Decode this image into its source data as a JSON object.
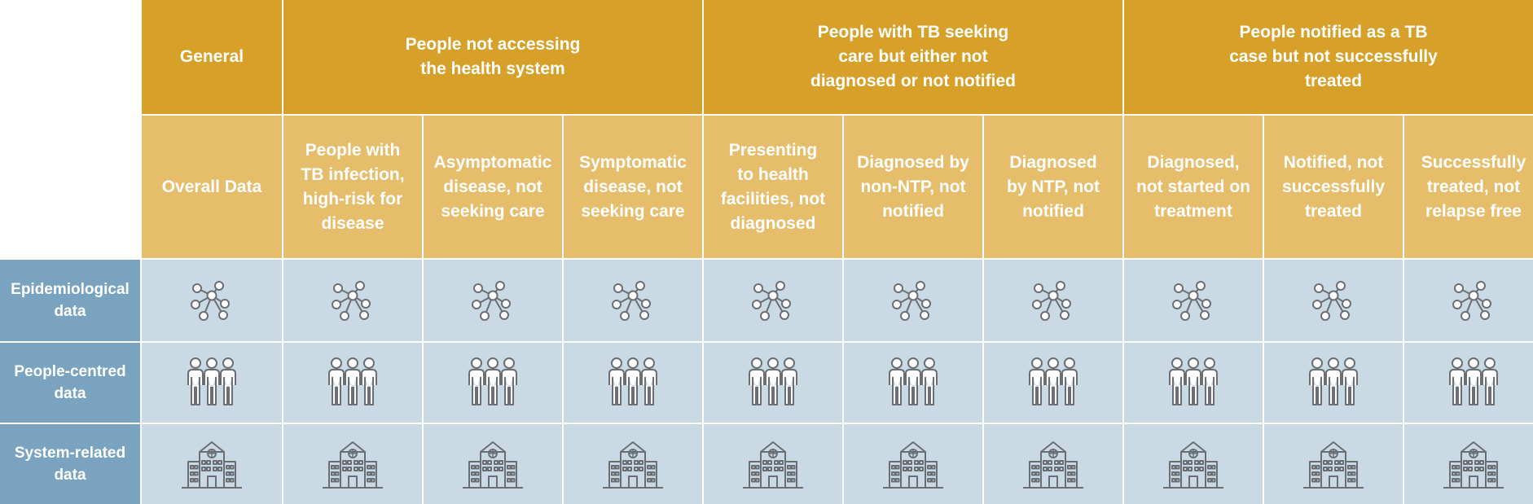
{
  "header": {
    "groups": [
      {
        "label": "General",
        "span": 1
      },
      {
        "label": "People not accessing\nthe health system",
        "span": 3
      },
      {
        "label": "People with TB seeking\ncare but either not\ndiagnosed or not notified",
        "span": 3
      },
      {
        "label": "People notified as a TB\ncase but not successfully\ntreated",
        "span": 3
      }
    ],
    "subcolumns": [
      "Overall Data",
      "People with\nTB infection,\nhigh-risk for\ndisease",
      "Asymptomatic\ndisease, not\nseeking care",
      "Symptomatic\ndisease, not\nseeking care",
      "Presenting\nto health\nfacilities, not\ndiagnosed",
      "Diagnosed by\nnon-NTP, not\nnotified",
      "Diagnosed\nby NTP, not\nnotified",
      "Diagnosed,\nnot started on\ntreatment",
      "Notified, not\nsuccessfully\ntreated",
      "Successfully\ntreated, not\nrelapse free"
    ]
  },
  "rows": [
    {
      "label": "Epidemiological\ndata",
      "icon": "network-icon"
    },
    {
      "label": "People-centred\ndata",
      "icon": "people-group-icon"
    },
    {
      "label": "System-related\ndata",
      "icon": "health-facility-icon"
    }
  ],
  "colors": {
    "group_header": "#d7a129",
    "subcolumn_header": "#e6be6b",
    "row_header": "#7aa3bf",
    "body_cell": "#c9dae4",
    "icon_stroke": "#6b6f73"
  }
}
